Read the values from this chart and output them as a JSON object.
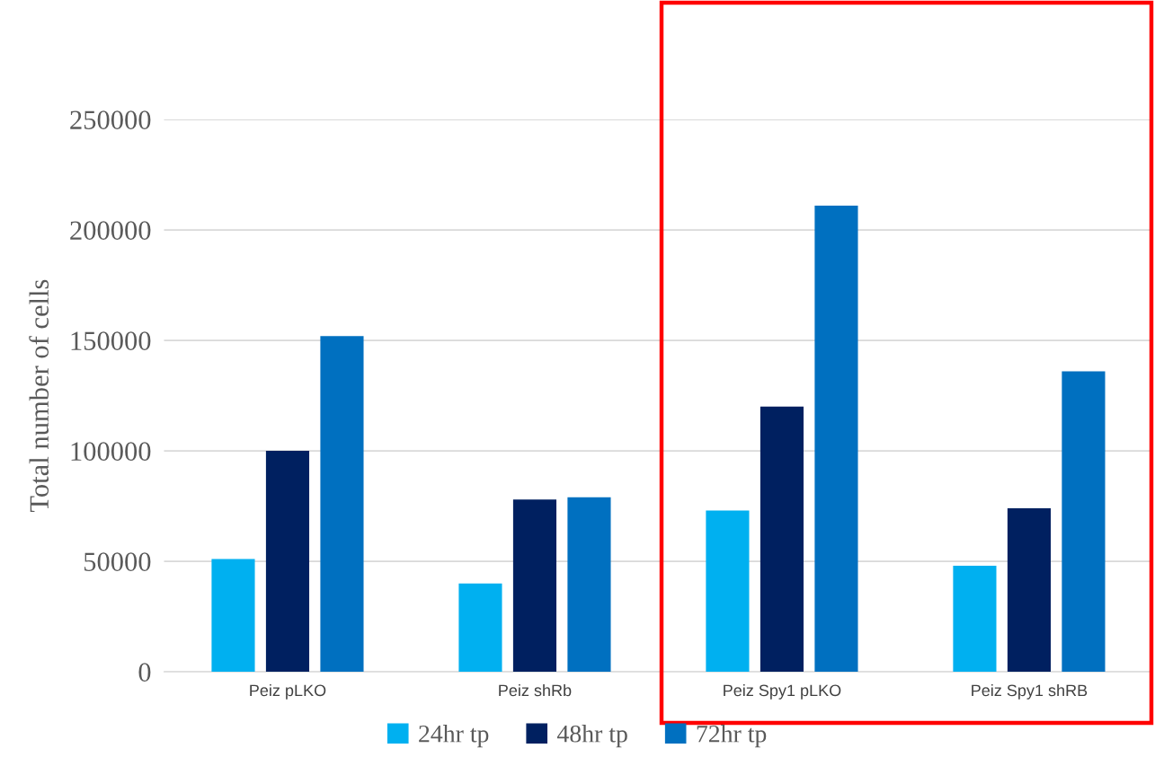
{
  "chart_data": {
    "type": "bar",
    "ylabel": "Total number of cells",
    "categories": [
      "Peiz pLKO",
      "Peiz shRb",
      "Peiz Spy1 pLKO",
      "Peiz Spy1 shRB"
    ],
    "series": [
      {
        "name": "24hr tp",
        "color": "#00b0f0",
        "values": [
          51000,
          40000,
          73000,
          48000
        ]
      },
      {
        "name": "48hr tp",
        "color": "#002060",
        "values": [
          100000,
          78000,
          120000,
          74000
        ]
      },
      {
        "name": "72hr tp",
        "color": "#0070c0",
        "values": [
          152000,
          79000,
          211000,
          136000
        ]
      }
    ],
    "ylim": [
      0,
      250000
    ],
    "yticks": [
      0,
      50000,
      100000,
      150000,
      200000,
      250000
    ],
    "grid": "y",
    "legend": "bottom"
  }
}
